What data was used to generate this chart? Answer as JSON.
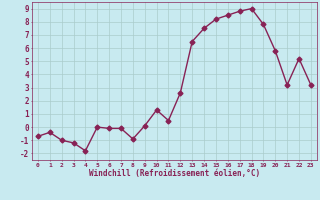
{
  "x": [
    0,
    1,
    2,
    3,
    4,
    5,
    6,
    7,
    8,
    9,
    10,
    11,
    12,
    13,
    14,
    15,
    16,
    17,
    18,
    19,
    20,
    21,
    22,
    23
  ],
  "y": [
    -0.7,
    -0.4,
    -1.0,
    -1.2,
    -1.8,
    0.0,
    -0.1,
    -0.1,
    -0.9,
    0.1,
    1.3,
    0.5,
    2.6,
    6.5,
    7.5,
    8.2,
    8.5,
    8.8,
    9.0,
    7.8,
    5.8,
    3.2,
    5.2,
    3.2
  ],
  "line_color": "#882255",
  "marker": "D",
  "marker_size": 2.5,
  "bg_color": "#c8eaf0",
  "grid_color": "#aacccc",
  "xlabel": "Windchill (Refroidissement éolien,°C)",
  "xlabel_color": "#882255",
  "tick_color": "#882255",
  "ylim": [
    -2.5,
    9.5
  ],
  "xlim": [
    -0.5,
    23.5
  ],
  "yticks": [
    -2,
    -1,
    0,
    1,
    2,
    3,
    4,
    5,
    6,
    7,
    8,
    9
  ],
  "xticks": [
    0,
    1,
    2,
    3,
    4,
    5,
    6,
    7,
    8,
    9,
    10,
    11,
    12,
    13,
    14,
    15,
    16,
    17,
    18,
    19,
    20,
    21,
    22,
    23
  ],
  "line_width": 1.0
}
